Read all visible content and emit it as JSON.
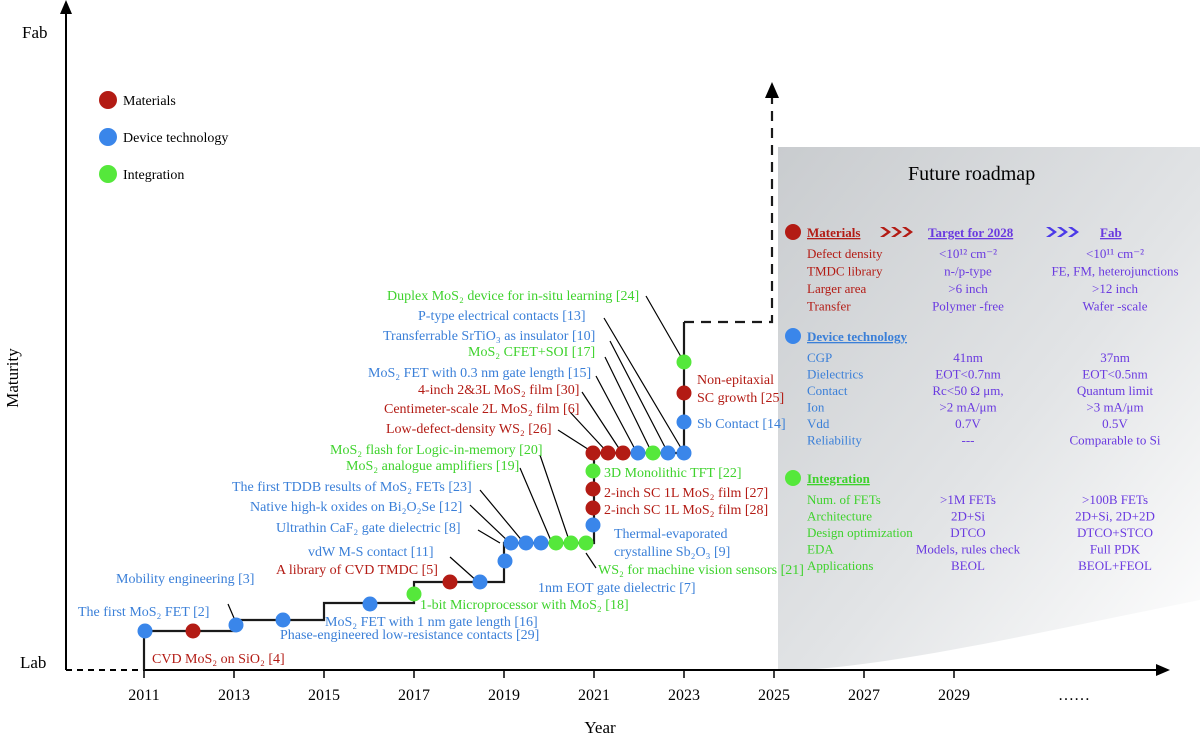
{
  "axes": {
    "y_label": "Maturity",
    "y_top": "Fab",
    "y_bottom": "Lab",
    "x_label": "Year",
    "x_ticks": [
      "2011",
      "2013",
      "2015",
      "2017",
      "2019",
      "2021",
      "2023",
      "2025",
      "2027",
      "2029"
    ],
    "x_ellipsis": "……"
  },
  "legend": [
    {
      "label": "Materials",
      "color": "#b31b14"
    },
    {
      "label": "Device technology",
      "color": "#3a86ea"
    },
    {
      "label": "Integration",
      "color": "#55e83b"
    }
  ],
  "colors": {
    "materials": "#b31b14",
    "device": "#3a86ea",
    "integration": "#55e83b",
    "device_text": "#3a7fd8",
    "integration_text": "#3ed22c",
    "roadmap_purple": "#6a3ae0"
  },
  "milestones": {
    "first_mos2_fet": "The first MoS₂ FET [2]",
    "cvd_mos2": "CVD MoS₂ on SiO₂ [4]",
    "mobility": "Mobility engineering [3]",
    "phase_eng": "Phase-engineered low-resistance contacts [29]",
    "fet_1nm": "MoS₂ FET with 1 nm gate length [16]",
    "microprocessor": "1-bit Microprocessor with MoS₂ [18]",
    "cvd_tmdc": "A library of CVD TMDC [5]",
    "vdw": "vdW M-S contact [11]",
    "caf2": "Ultrathin CaF₂ gate dielectric [8]",
    "native_highk": "Native high-k oxides on Bi₂O₂Se [12]",
    "tddb": "The first TDDB results of MoS₂ FETs [23]",
    "analogue": "MoS₂ analogue amplifiers [19]",
    "flash": "MoS₂ flash for Logic-in-memory [20]",
    "low_defect": "Low-defect-density WS₂ [26]",
    "cm_scale": "Centimeter-scale 2L MoS₂ film [6]",
    "four_inch": "4-inch 2&3L MoS₂ film [30]",
    "fet_03nm": "MoS₂ FET with 0.3 nm gate length [15]",
    "cfet": "MoS₂ CFET+SOI [17]",
    "srtio3": "Transferrable SrTiO₃ as insulator [10]",
    "ptype": "P-type electrical contacts [13]",
    "duplex": "Duplex MoS₂ device for in-situ learning [24]",
    "non_epi_1": "Non-epitaxial",
    "non_epi_2": "SC growth [25]",
    "sb_contact": "Sb Contact [14]",
    "monolithic": "3D Monolithic TFT [22]",
    "sc1l_27": "2-inch SC 1L MoS₂ film [27]",
    "sc1l_28": "2-inch SC 1L MoS₂ film [28]",
    "thermal_1": "Thermal-evaporated",
    "thermal_2": "crystalline Sb₂O₃ [9]",
    "ws2_vision": "WS₂ for machine vision sensors [21]",
    "eot1nm": "1nm EOT gate dielectric [7]"
  },
  "roadmap": {
    "title": "Future roadmap",
    "col_target": "Target for 2028",
    "col_fab": "Fab",
    "materials": {
      "header": "Materials",
      "rows": [
        [
          "Defect density",
          "<10¹² cm⁻²",
          "<10¹¹ cm⁻²"
        ],
        [
          "TMDC library",
          "n-/p-type",
          "FE, FM, heterojunctions"
        ],
        [
          "Larger area",
          ">6 inch",
          ">12 inch"
        ],
        [
          "Transfer",
          "Polymer -free",
          "Wafer -scale"
        ]
      ]
    },
    "device": {
      "header": "Device technology",
      "rows": [
        [
          "CGP",
          "41nm",
          "37nm"
        ],
        [
          "Dielectrics",
          "EOT<0.7nm",
          "EOT<0.5nm"
        ],
        [
          "Contact",
          "Rc<50 Ω μm,",
          "Quantum limit"
        ],
        [
          "Ion",
          ">2 mA/μm",
          ">3 mA/μm"
        ],
        [
          "Vdd",
          "0.7V",
          "0.5V"
        ],
        [
          "Reliability",
          "---",
          "Comparable to Si"
        ]
      ]
    },
    "integration": {
      "header": "Integration",
      "rows": [
        [
          "Num. of FETs",
          ">1M FETs",
          ">100B FETs"
        ],
        [
          "Architecture",
          "2D+Si",
          "2D+Si, 2D+2D"
        ],
        [
          "Design optimization",
          "DTCO",
          "DTCO+STCO"
        ],
        [
          "EDA",
          "Models, rules check",
          "Full PDK"
        ],
        [
          "Applications",
          "BEOL",
          "BEOL+FEOL"
        ]
      ]
    }
  }
}
